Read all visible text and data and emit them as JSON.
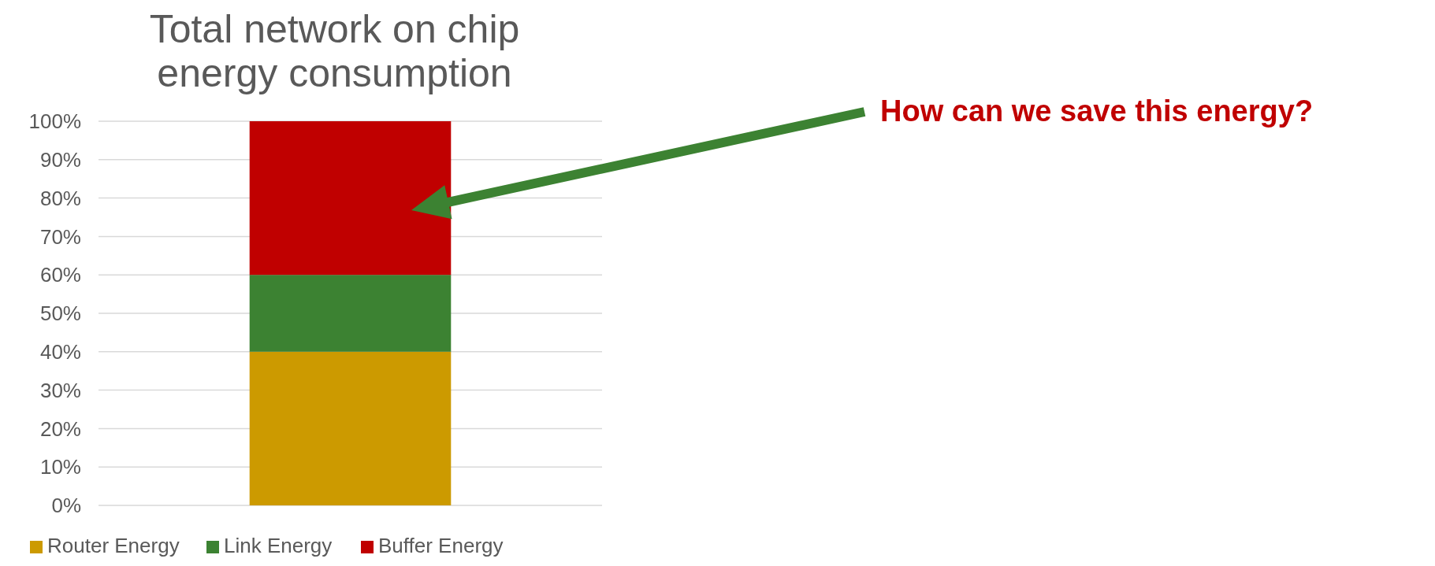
{
  "chart_data": {
    "type": "bar",
    "title": "Total network on chip\nenergy consumption",
    "categories": [
      null
    ],
    "stacked": true,
    "series": [
      {
        "name": "Router Energy",
        "color": "#cc9a00",
        "values": [
          40
        ]
      },
      {
        "name": "Link Energy",
        "color": "#3c8232",
        "values": [
          20
        ]
      },
      {
        "name": "Buffer Energy",
        "color": "#c00000",
        "values": [
          40
        ]
      }
    ],
    "ylim": [
      0,
      100
    ],
    "yticks": [
      {
        "value": 0,
        "label": "0%"
      },
      {
        "value": 10,
        "label": "10%"
      },
      {
        "value": 20,
        "label": "20%"
      },
      {
        "value": 30,
        "label": "30%"
      },
      {
        "value": 40,
        "label": "40%"
      },
      {
        "value": 50,
        "label": "50%"
      },
      {
        "value": 60,
        "label": "60%"
      },
      {
        "value": 70,
        "label": "70%"
      },
      {
        "value": 80,
        "label": "80%"
      },
      {
        "value": 90,
        "label": "90%"
      },
      {
        "value": 100,
        "label": "100%"
      }
    ],
    "grid": "y",
    "legend": "bottom",
    "annotations": [
      "How can we save this energy?"
    ]
  }
}
